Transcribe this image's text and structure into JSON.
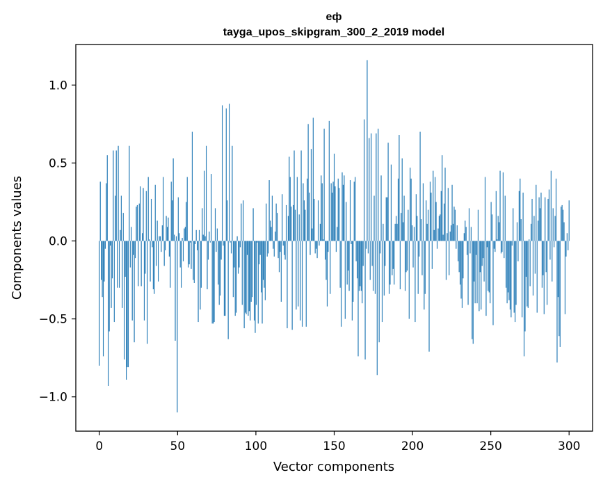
{
  "chart_data": {
    "type": "bar",
    "title_line1": "еф",
    "title_line2": "tayga_upos_skipgram_300_2_2019 model",
    "xlabel": "Vector components",
    "ylabel": "Components values",
    "xlim": [
      -15,
      315
    ],
    "ylim": [
      -1.22,
      1.26
    ],
    "xticks": [
      0,
      50,
      100,
      150,
      200,
      250,
      300
    ],
    "xtick_labels": [
      "0",
      "50",
      "100",
      "150",
      "200",
      "250",
      "300"
    ],
    "yticks": [
      -1.0,
      -0.5,
      0.0,
      0.5,
      1.0
    ],
    "ytick_labels": [
      "−1.0",
      "−0.5",
      "0.0",
      "0.5",
      "1.0"
    ],
    "bar_color": "#1f77b4",
    "values": [
      -0.8,
      0.38,
      -0.25,
      -0.36,
      -0.74,
      -0.26,
      -0.05,
      0.37,
      0.55,
      -0.93,
      -0.58,
      -0.03,
      -0.43,
      -0.24,
      0.58,
      -0.52,
      0.29,
      0.58,
      -0.3,
      0.61,
      -0.3,
      0.07,
      0.29,
      -0.43,
      0.18,
      -0.76,
      -0.23,
      -0.89,
      -0.81,
      -0.81,
      0.61,
      -0.17,
      0.09,
      -0.51,
      -0.09,
      -0.65,
      -0.11,
      0.22,
      0.23,
      -0.29,
      0.24,
      0.35,
      -0.29,
      0.05,
      0.34,
      -0.51,
      -0.21,
      0.32,
      -0.66,
      0.41,
      0.01,
      -0.26,
      0.27,
      -0.04,
      -0.31,
      -0.34,
      0.36,
      -0.16,
      0.13,
      -0.26,
      0.03,
      0.03,
      -0.07,
      0.1,
      0.41,
      -0.16,
      -0.06,
      0.16,
      0.09,
      0.15,
      -0.1,
      -0.3,
      0.38,
      0.26,
      0.53,
      0.04,
      -0.64,
      0.03,
      -1.1,
      0.28,
      0.05,
      -0.17,
      -0.3,
      0.02,
      -0.13,
      0.08,
      0.09,
      0.25,
      0.41,
      -0.17,
      -0.15,
      -0.01,
      -0.18,
      0.7,
      -0.25,
      -0.27,
      -0.02,
      0.07,
      -0.06,
      -0.52,
      0.07,
      -0.44,
      -0.3,
      0.21,
      0.04,
      0.45,
      0.03,
      0.61,
      -0.31,
      -0.12,
      0.06,
      -0.01,
      0.43,
      -0.53,
      -0.53,
      -0.52,
      0.21,
      -0.07,
      0.08,
      -0.28,
      -0.41,
      -0.35,
      -0.12,
      0.87,
      -0.03,
      -0.48,
      -0.48,
      0.85,
      0.26,
      -0.63,
      0.88,
      -0.01,
      -0.08,
      0.61,
      -0.36,
      -0.17,
      -0.48,
      -0.46,
      0.03,
      -0.21,
      -0.17,
      -0.04,
      0.24,
      -0.41,
      0.26,
      -0.56,
      -0.46,
      -0.47,
      -0.09,
      -0.48,
      -0.45,
      -0.51,
      -0.39,
      -0.36,
      0.21,
      -0.51,
      -0.59,
      -0.41,
      -0.01,
      -0.53,
      -0.15,
      -0.09,
      -0.33,
      -0.53,
      -0.25,
      -0.3,
      -0.38,
      0.24,
      -0.1,
      -0.08,
      0.39,
      0.13,
      0.09,
      0.29,
      -0.05,
      -0.1,
      0.06,
      0.24,
      0.18,
      -0.11,
      -0.2,
      -0.07,
      -0.39,
      0.3,
      -0.03,
      -0.09,
      -0.12,
      0.23,
      -0.56,
      0.16,
      0.54,
      0.41,
      0.22,
      -0.57,
      0.23,
      0.58,
      0.2,
      -0.44,
      0.41,
      -0.42,
      0.17,
      -0.51,
      0.58,
      -0.55,
      0.37,
      0.26,
      0.2,
      -0.55,
      0.4,
      0.75,
      0.31,
      -0.09,
      0.59,
      0.08,
      0.79,
      0.27,
      -0.08,
      -0.05,
      -0.11,
      0.26,
      -0.03,
      0.11,
      0.42,
      0.37,
      0.01,
      0.72,
      -0.12,
      -0.25,
      -0.42,
      -0.07,
      0.77,
      -0.34,
      0.37,
      0.31,
      0.38,
      0.56,
      0.35,
      -0.07,
      0.09,
      0.4,
      0.34,
      -0.3,
      -0.55,
      0.44,
      0.36,
      0.42,
      -0.5,
      0.25,
      -0.28,
      -0.19,
      -0.32,
      0.39,
      -0.02,
      -0.51,
      -0.39,
      0.38,
      0.41,
      -0.13,
      -0.24,
      -0.74,
      -0.32,
      -0.29,
      -0.32,
      -0.4,
      -0.16,
      0.78,
      -0.76,
      -0.05,
      1.16,
      -0.08,
      0.66,
      -0.25,
      0.69,
      -0.16,
      -0.32,
      0.29,
      -0.34,
      0.69,
      -0.86,
      0.72,
      -0.65,
      -0.08,
      0.42,
      -0.52,
      0.11,
      -0.35,
      -0.16,
      0.28,
      0.28,
      0.63,
      -0.34,
      -0.28,
      0.49,
      -0.22,
      -0.18,
      -0.28,
      0.11,
      0.16,
      0.11,
      0.4,
      0.68,
      -0.31,
      0.18,
      0.53,
      0.12,
      0.29,
      -0.32,
      -0.2,
      -0.19,
      0.2,
      -0.5,
      0.47,
      0.4,
      0.1,
      -0.17,
      0.09,
      -0.52,
      0.3,
      0.16,
      -0.34,
      -0.1,
      0.7,
      0.14,
      -0.22,
      0.37,
      -0.44,
      -0.34,
      0.26,
      0.11,
      0.2,
      -0.71,
      0.38,
      0.31,
      -0.18,
      0.45,
      0.07,
      0.41,
      0.25,
      -0.05,
      0.08,
      0.16,
      0.17,
      0.32,
      0.55,
      0.04,
      0.24,
      0.47,
      -0.25,
      0.05,
      0.34,
      -0.22,
      0.06,
      0.1,
      0.36,
      0.11,
      0.22,
      0.2,
      -0.05,
      0.1,
      -0.13,
      -0.2,
      -0.28,
      -0.37,
      -0.43,
      -0.24,
      0.05,
      0.13,
      0.09,
      -0.09,
      -0.41,
      0.21,
      -0.08,
      0.09,
      -0.63,
      -0.66,
      -0.26,
      -0.4,
      -0.09,
      -0.4,
      0.2,
      -0.45,
      -0.2,
      -0.44,
      -0.16,
      -0.11,
      -0.26,
      0.41,
      -0.48,
      -0.04,
      -0.32,
      -0.33,
      -0.4,
      0.25,
      0.17,
      -0.54,
      -0.05,
      -0.07,
      0.32,
      0.01,
      0.16,
      0.12,
      0.45,
      -0.08,
      -0.07,
      0.44,
      -0.11,
      0.29,
      -0.3,
      -0.4,
      -0.33,
      -0.38,
      -0.44,
      -0.49,
      -0.03,
      0.21,
      -0.46,
      -0.52,
      -0.41,
      0.12,
      -0.13,
      0.32,
      0.4,
      0.14,
      -0.49,
      0.31,
      -0.74,
      -0.58,
      -0.23,
      -0.42,
      -0.43,
      0.01,
      -0.29,
      0.11,
      0.27,
      -0.35,
      0.16,
      -0.21,
      0.36,
      -0.46,
      0.13,
      0.28,
      0.21,
      0.31,
      -0.3,
      -0.22,
      -0.47,
      0.28,
      -0.2,
      -0.41,
      0.27,
      0.33,
      -0.12,
      0.45,
      -0.26,
      0.21,
      -0.04,
      0.16,
      0.4,
      -0.78,
      -0.36,
      -0.61,
      -0.68,
      0.22,
      0.23,
      0.2,
      0.12,
      -0.47,
      -0.1,
      0.05,
      -0.06,
      0.26
    ]
  }
}
